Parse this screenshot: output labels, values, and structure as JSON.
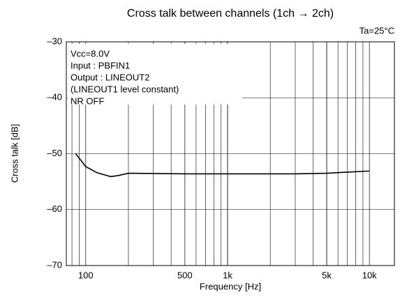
{
  "chart_data": {
    "type": "line",
    "title": "Cross talk between channels (1ch → 2ch)",
    "annotation": "Ta=25°C",
    "notes": [
      "Vcc=8.0V",
      "Input : PBFIN1",
      "Output : LINEOUT2",
      "(LINEOUT1 level constant)",
      "NR  OFF"
    ],
    "x_label": "Frequency [Hz]",
    "y_label": "Cross talk [dB]",
    "x_scale": "log",
    "minor_grid": true,
    "grid": true,
    "xlim": [
      73,
      15000
    ],
    "ylim": [
      -70,
      -30
    ],
    "xticks": [
      100,
      500,
      {
        "value": 1000,
        "label": "1k"
      },
      {
        "value": 5000,
        "label": "5k"
      },
      {
        "value": 10000,
        "label": "10k"
      }
    ],
    "yticks": [
      {
        "value": -70,
        "label": "–70"
      },
      {
        "value": -60,
        "label": "–60"
      },
      {
        "value": -50,
        "label": "–50"
      },
      {
        "value": -40,
        "label": "–40"
      },
      {
        "value": -30,
        "label": "–30"
      }
    ],
    "series": [
      {
        "color": "#000000",
        "x": [
          85,
          100,
          120,
          150,
          170,
          200,
          500,
          1000,
          3000,
          5000,
          7000,
          10000
        ],
        "values": [
          -50,
          -52.3,
          -53.4,
          -54.1,
          -53.9,
          -53.5,
          -53.6,
          -53.6,
          -53.6,
          -53.5,
          -53.3,
          -53.1
        ]
      }
    ]
  }
}
